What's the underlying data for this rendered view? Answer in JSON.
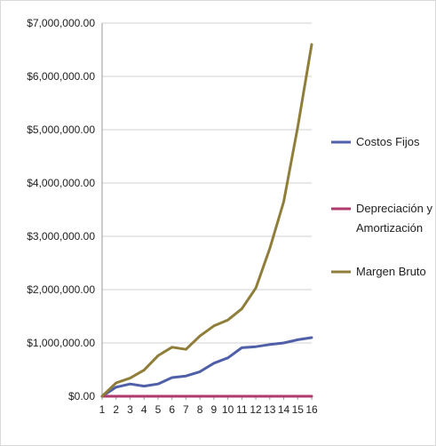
{
  "chart_data": {
    "type": "line",
    "x": [
      1,
      2,
      3,
      4,
      5,
      6,
      7,
      8,
      9,
      10,
      11,
      12,
      13,
      14,
      15,
      16
    ],
    "ylim": [
      0,
      7000000
    ],
    "yticks": [
      "$0.00",
      "$1,000,000.00",
      "$2,000,000.00",
      "$3,000,000.00",
      "$4,000,000.00",
      "$5,000,000.00",
      "$6,000,000.00",
      "$7,000,000.00"
    ],
    "grid": true,
    "legend_position": "right",
    "series": [
      {
        "name": "Costos Fijos",
        "color": "#4f5fa8",
        "values": [
          0,
          170000,
          230000,
          190000,
          230000,
          350000,
          380000,
          460000,
          620000,
          720000,
          910000,
          930000,
          970000,
          1000000,
          1060000,
          1100000
        ]
      },
      {
        "name": "Depreciación y Amortización",
        "color": "#b03a6e",
        "values": [
          0,
          0,
          0,
          0,
          0,
          0,
          0,
          0,
          0,
          0,
          0,
          0,
          0,
          0,
          0,
          0
        ]
      },
      {
        "name": "Margen Bruto",
        "color": "#8f7e3a",
        "values": [
          0,
          250000,
          340000,
          490000,
          760000,
          920000,
          880000,
          1130000,
          1320000,
          1430000,
          1640000,
          2030000,
          2770000,
          3650000,
          5050000,
          6600000
        ]
      }
    ]
  }
}
